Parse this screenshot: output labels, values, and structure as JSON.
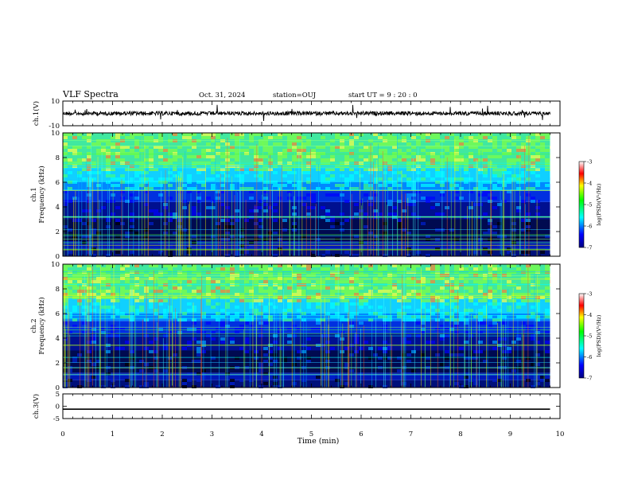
{
  "header": {
    "title": "VLF Spectra",
    "date": "Oct. 31, 2024",
    "station": "station=OUJ",
    "start_ut": "start UT =  9 : 20 : 0"
  },
  "chart_data": [
    {
      "type": "line",
      "panel": "ch1-waveform",
      "ylabel": "ch.1(V)",
      "ylim": [
        -10,
        10
      ],
      "ytick_labels": [
        "10",
        "-10"
      ],
      "xlim": [
        0,
        10
      ],
      "trace_level": 0
    },
    {
      "type": "heatmap",
      "panel": "ch1-spectrogram",
      "ylabel": "ch.1\nFrequency (kHz)",
      "ylim": [
        0,
        10
      ],
      "ytick_labels": [
        "0",
        "2",
        "4",
        "6",
        "8",
        "10"
      ],
      "xlim": [
        0,
        10
      ],
      "data_end_min": 9.8,
      "colorbar": {
        "label": "log(PSD)(V²/Hz)",
        "range": [
          -7,
          -3
        ],
        "tick_labels": [
          "-3",
          "-4",
          "-5",
          "-6",
          "-7"
        ]
      }
    },
    {
      "type": "heatmap",
      "panel": "ch2-spectrogram",
      "ylabel": "ch.2\nFrequency (kHz)",
      "ylim": [
        0,
        10
      ],
      "ytick_labels": [
        "0",
        "2",
        "4",
        "6",
        "8",
        "10"
      ],
      "xlim": [
        0,
        10
      ],
      "data_end_min": 9.8,
      "colorbar": {
        "label": "log(PSD)(V²/Hz)",
        "range": [
          -7,
          -3
        ],
        "tick_labels": [
          "-3",
          "-4",
          "-5",
          "-6",
          "-7"
        ]
      }
    },
    {
      "type": "line",
      "panel": "ch3-waveform",
      "ylabel": "ch.3(V)",
      "ylim": [
        -5,
        5
      ],
      "ytick_labels": [
        "5",
        "0",
        "-5"
      ],
      "xlim": [
        0,
        10
      ],
      "trace_level": -1.2
    }
  ],
  "x_axis": {
    "label": "Time (min)",
    "ticks": [
      0,
      1,
      2,
      3,
      4,
      5,
      6,
      7,
      8,
      9,
      10
    ]
  }
}
